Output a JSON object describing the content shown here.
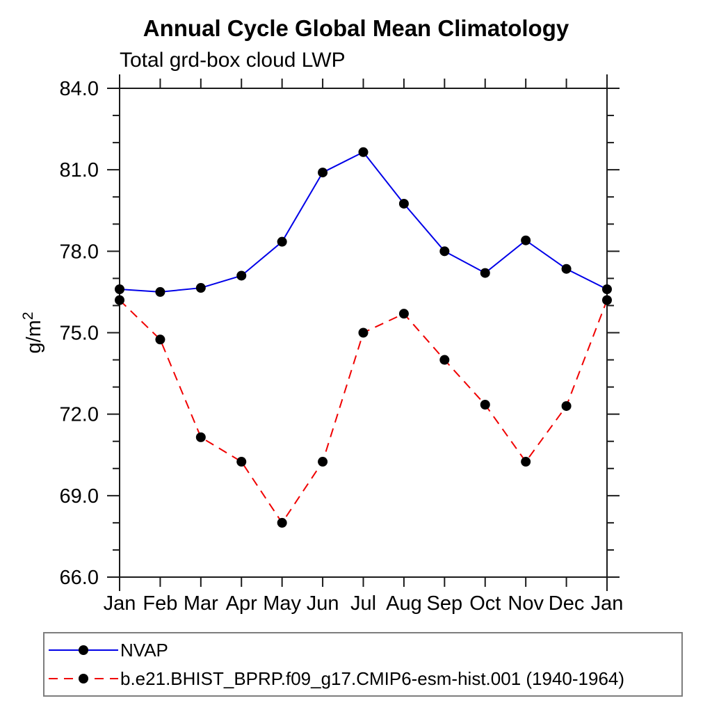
{
  "chart_data": {
    "type": "line",
    "title": "Annual Cycle Global Mean Climatology",
    "subtitle": "Total grd-box cloud LWP",
    "ylabel": "g/m²",
    "xlabel": "",
    "x_categories": [
      "Jan",
      "Feb",
      "Mar",
      "Apr",
      "May",
      "Jun",
      "Jul",
      "Aug",
      "Sep",
      "Oct",
      "Nov",
      "Dec",
      "Jan"
    ],
    "ylim": [
      66,
      84
    ],
    "ytick_values": [
      66,
      69,
      72,
      75,
      78,
      81,
      84
    ],
    "ytick_labels": [
      "66.0",
      "69.0",
      "72.0",
      "75.0",
      "78.0",
      "81.0",
      "84.0"
    ],
    "minor_tick_interval": 1,
    "grid": false,
    "legend_position": "bottom-left-box",
    "axis_color": "#1a1a1a",
    "series": [
      {
        "name": "NVAP",
        "color": "#0000e8",
        "line_style": "solid",
        "marker": "filled-circle",
        "marker_color": "#000000",
        "values": [
          76.6,
          76.5,
          76.65,
          77.1,
          78.35,
          80.9,
          81.65,
          79.75,
          78.0,
          77.2,
          78.4,
          77.35,
          76.6
        ]
      },
      {
        "name": "b.e21.BHIST_BPRP.f09_g17.CMIP6-esm-hist.001 (1940-1964)",
        "color": "#f00000",
        "line_style": "dashed",
        "marker": "filled-circle",
        "marker_color": "#000000",
        "values": [
          76.2,
          74.75,
          71.15,
          70.25,
          68.0,
          70.25,
          75.0,
          75.7,
          74.0,
          72.35,
          70.25,
          72.3,
          76.2
        ]
      }
    ]
  }
}
